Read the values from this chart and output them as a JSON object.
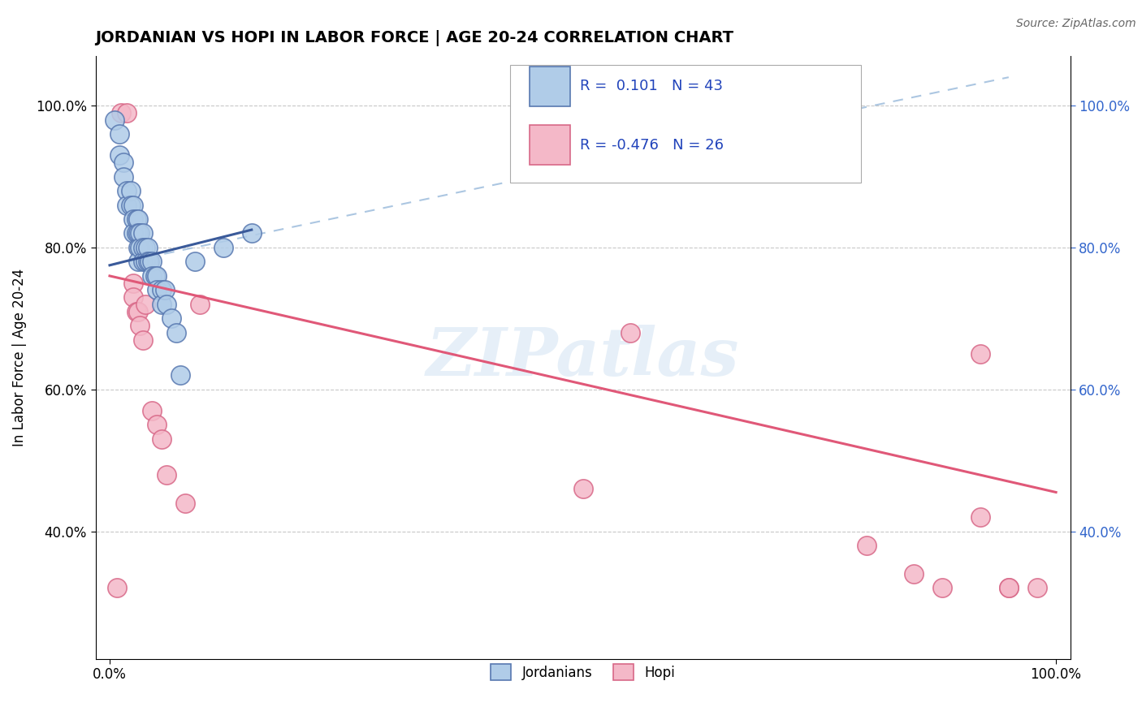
{
  "title": "JORDANIAN VS HOPI IN LABOR FORCE | AGE 20-24 CORRELATION CHART",
  "source": "Source: ZipAtlas.com",
  "ylabel": "In Labor Force | Age 20-24",
  "xlim": [
    -0.015,
    1.015
  ],
  "ylim": [
    0.22,
    1.07
  ],
  "xticks": [
    0.0,
    1.0
  ],
  "xticklabels": [
    "0.0%",
    "100.0%"
  ],
  "yticks": [
    0.4,
    0.6,
    0.8,
    1.0
  ],
  "yticklabels": [
    "40.0%",
    "60.0%",
    "80.0%",
    "100.0%"
  ],
  "grid_color": "#c8c8c8",
  "background_color": "#ffffff",
  "jordanians_color": "#b0cce8",
  "hopi_color": "#f4b8c8",
  "jordanians_edge": "#5878b0",
  "hopi_edge": "#d86888",
  "trend_jordan_color": "#3a5a9a",
  "trend_hopi_color": "#e05878",
  "trend_jordan_dash_color": "#90b4d8",
  "R_jordan": 0.101,
  "N_jordan": 43,
  "R_hopi": -0.476,
  "N_hopi": 26,
  "legend_jordan_label": "Jordanians",
  "legend_hopi_label": "Hopi",
  "watermark": "ZIPatlas",
  "jordanians_x": [
    0.005,
    0.01,
    0.01,
    0.015,
    0.015,
    0.018,
    0.018,
    0.022,
    0.022,
    0.025,
    0.025,
    0.025,
    0.028,
    0.028,
    0.03,
    0.03,
    0.03,
    0.03,
    0.032,
    0.032,
    0.035,
    0.035,
    0.035,
    0.038,
    0.038,
    0.04,
    0.04,
    0.042,
    0.045,
    0.045,
    0.048,
    0.05,
    0.05,
    0.055,
    0.055,
    0.058,
    0.06,
    0.065,
    0.07,
    0.075,
    0.09,
    0.12,
    0.15
  ],
  "jordanians_y": [
    0.98,
    0.96,
    0.93,
    0.92,
    0.9,
    0.88,
    0.86,
    0.88,
    0.86,
    0.86,
    0.84,
    0.82,
    0.84,
    0.82,
    0.84,
    0.82,
    0.8,
    0.78,
    0.82,
    0.8,
    0.82,
    0.8,
    0.78,
    0.8,
    0.78,
    0.8,
    0.78,
    0.78,
    0.78,
    0.76,
    0.76,
    0.76,
    0.74,
    0.74,
    0.72,
    0.74,
    0.72,
    0.7,
    0.68,
    0.62,
    0.78,
    0.8,
    0.82
  ],
  "hopi_x": [
    0.008,
    0.012,
    0.018,
    0.025,
    0.025,
    0.028,
    0.03,
    0.032,
    0.035,
    0.038,
    0.045,
    0.05,
    0.055,
    0.06,
    0.08,
    0.095,
    0.5,
    0.55,
    0.8,
    0.85,
    0.88,
    0.92,
    0.92,
    0.95,
    0.95,
    0.98
  ],
  "hopi_y": [
    0.32,
    0.99,
    0.99,
    0.75,
    0.73,
    0.71,
    0.71,
    0.69,
    0.67,
    0.72,
    0.57,
    0.55,
    0.53,
    0.48,
    0.44,
    0.72,
    0.46,
    0.68,
    0.38,
    0.34,
    0.32,
    0.65,
    0.42,
    0.32,
    0.32,
    0.32
  ]
}
